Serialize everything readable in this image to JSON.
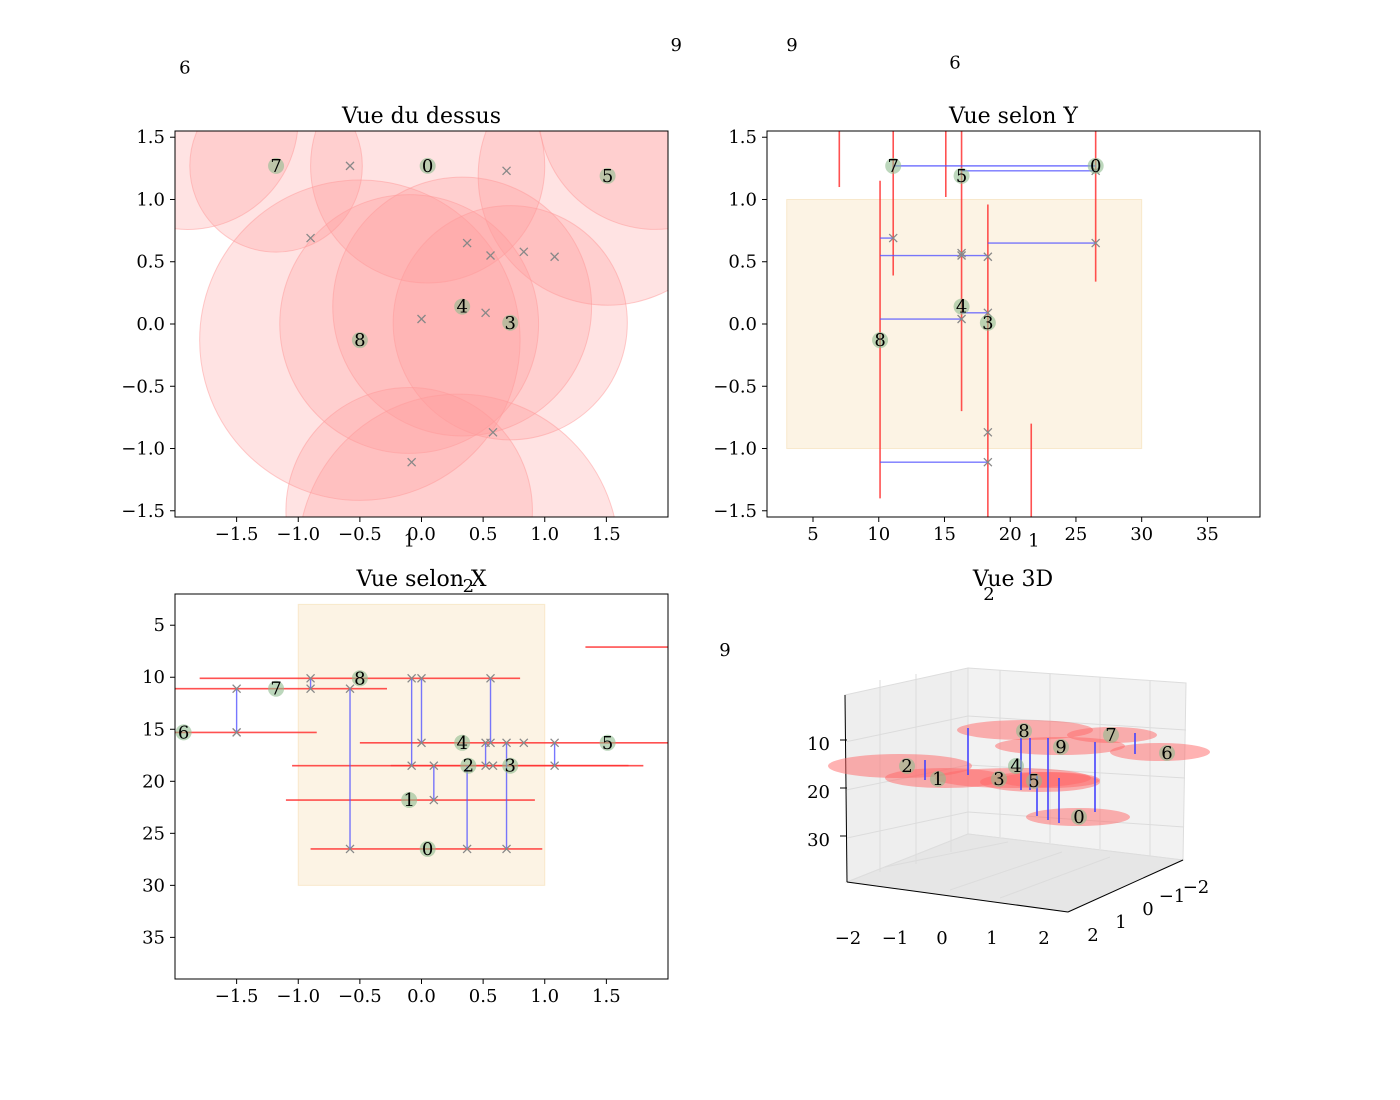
{
  "colors": {
    "circle": "#ff9999",
    "point": "#8fbc8f",
    "cross": "#888888",
    "vline": "#ff3333",
    "hline": "#5555ff",
    "region": "#f5deb3"
  },
  "chart_data": [
    {
      "type": "scatter",
      "title": "Vue du dessus",
      "xlim": [
        -2,
        2
      ],
      "ylim": [
        -1.55,
        1.55
      ],
      "xticks": [
        "−1.5",
        "−1.0",
        "−0.5",
        "0.0",
        "0.5",
        "1.0",
        "1.5"
      ],
      "xtickvals": [
        -1.5,
        -1.0,
        -0.5,
        0.0,
        0.5,
        1.0,
        1.5
      ],
      "yticks": [
        "1.5",
        "1.0",
        "0.5",
        "0.0",
        "−0.5",
        "−1.0",
        "−1.5"
      ],
      "ytickvals": [
        1.5,
        1.0,
        0.5,
        0.0,
        -0.5,
        -1.0,
        -1.5
      ],
      "labeled_points": [
        {
          "id": "0",
          "x": 0.05,
          "y": 1.27
        },
        {
          "id": "3",
          "x": 0.72,
          "y": 0.01
        },
        {
          "id": "4",
          "x": 0.33,
          "y": 0.14
        },
        {
          "id": "5",
          "x": 1.51,
          "y": 1.19
        },
        {
          "id": "7",
          "x": -1.18,
          "y": 1.27
        },
        {
          "id": "8",
          "x": -0.5,
          "y": -0.13
        }
      ],
      "crosses": [
        {
          "x": -0.58,
          "y": 1.27
        },
        {
          "x": 0.69,
          "y": 1.23
        },
        {
          "x": -0.9,
          "y": 0.69
        },
        {
          "x": 0.37,
          "y": 0.65
        },
        {
          "x": 0.56,
          "y": 0.55
        },
        {
          "x": 0.83,
          "y": 0.58
        },
        {
          "x": 1.08,
          "y": 0.54
        },
        {
          "x": 0.0,
          "y": 0.04
        },
        {
          "x": 0.52,
          "y": 0.09
        },
        {
          "x": 0.58,
          "y": -0.87
        },
        {
          "x": -0.08,
          "y": -1.11
        }
      ],
      "circles": [
        {
          "x": -1.18,
          "y": 1.27,
          "r": 0.7
        },
        {
          "x": 0.05,
          "y": 1.27,
          "r": 0.95
        },
        {
          "x": 1.51,
          "y": 1.19,
          "r": 1.05
        },
        {
          "x": -1.9,
          "y": 1.65,
          "r": 0.9
        },
        {
          "x": 1.9,
          "y": 1.7,
          "r": 0.95
        },
        {
          "x": -0.5,
          "y": -0.13,
          "r": 1.3
        },
        {
          "x": 0.33,
          "y": 0.14,
          "r": 1.05
        },
        {
          "x": 0.72,
          "y": 0.01,
          "r": 0.95
        },
        {
          "x": -0.1,
          "y": 0.0,
          "r": 1.05
        },
        {
          "x": -0.1,
          "y": -1.5,
          "r": 1.0
        },
        {
          "x": 0.3,
          "y": -1.85,
          "r": 1.3
        }
      ],
      "offscreen_labels": [
        {
          "text": "6",
          "x": -1.92,
          "y": 2.06
        },
        {
          "text": "1",
          "x": -0.1,
          "y": -1.74
        }
      ]
    },
    {
      "type": "scatter",
      "title": "Vue selon Y",
      "xlim": [
        1.5,
        39
      ],
      "ylim": [
        -1.55,
        1.55
      ],
      "xticks": [
        "5",
        "10",
        "15",
        "20",
        "25",
        "30",
        "35"
      ],
      "xtickvals": [
        5,
        10,
        15,
        20,
        25,
        30,
        35
      ],
      "yticks": [
        "1.5",
        "1.0",
        "0.5",
        "0.0",
        "−0.5",
        "−1.0",
        "−1.5"
      ],
      "ytickvals": [
        1.5,
        1.0,
        0.5,
        0.0,
        -0.5,
        -1.0,
        -1.5
      ],
      "region": {
        "x": [
          3,
          30
        ],
        "y": [
          -1,
          1
        ]
      },
      "labeled_points": [
        {
          "id": "7",
          "x": 11.1,
          "y": 1.27
        },
        {
          "id": "0",
          "x": 26.5,
          "y": 1.27
        },
        {
          "id": "5",
          "x": 16.3,
          "y": 1.19
        },
        {
          "id": "4",
          "x": 16.3,
          "y": 0.14
        },
        {
          "id": "3",
          "x": 18.3,
          "y": 0.01
        },
        {
          "id": "8",
          "x": 10.1,
          "y": -0.13
        }
      ],
      "crosses": [
        {
          "x": 26.5,
          "y": 1.23
        },
        {
          "x": 11.1,
          "y": 0.69
        },
        {
          "x": 26.5,
          "y": 0.65
        },
        {
          "x": 16.3,
          "y": 0.57
        },
        {
          "x": 16.3,
          "y": 0.55
        },
        {
          "x": 18.3,
          "y": 0.54
        },
        {
          "x": 16.3,
          "y": 0.04
        },
        {
          "x": 18.3,
          "y": 0.09
        },
        {
          "x": 18.3,
          "y": -0.87
        },
        {
          "x": 18.3,
          "y": -1.11
        }
      ],
      "vlines": [
        {
          "x": 7.0,
          "y1": 1.1,
          "y2": 1.6
        },
        {
          "x": 11.1,
          "y1": 0.39,
          "y2": 1.6
        },
        {
          "x": 10.1,
          "y1": -1.4,
          "y2": 1.15
        },
        {
          "x": 15.1,
          "y1": 1.02,
          "y2": 1.6
        },
        {
          "x": 16.3,
          "y1": -0.7,
          "y2": 1.6
        },
        {
          "x": 18.3,
          "y1": -1.6,
          "y2": 0.96
        },
        {
          "x": 26.5,
          "y1": 0.34,
          "y2": 1.6
        },
        {
          "x": 21.6,
          "y1": -1.6,
          "y2": -0.8
        }
      ],
      "hlines": [
        {
          "y": 1.27,
          "x1": 11.1,
          "x2": 26.5
        },
        {
          "y": 1.23,
          "x1": 16.3,
          "x2": 26.5
        },
        {
          "y": 0.69,
          "x1": 10.1,
          "x2": 11.1
        },
        {
          "y": 0.65,
          "x1": 18.3,
          "x2": 26.5
        },
        {
          "y": 0.55,
          "x1": 10.1,
          "x2": 18.3
        },
        {
          "y": 0.04,
          "x1": 10.1,
          "x2": 16.3
        },
        {
          "y": 0.09,
          "x1": 16.3,
          "x2": 18.3
        },
        {
          "y": -1.11,
          "x1": 10.1,
          "x2": 18.3
        }
      ],
      "offscreen_labels": [
        {
          "text": "9",
          "x": -5.4,
          "y": 2.24
        },
        {
          "text": "9",
          "x": 3.4,
          "y": 2.24
        },
        {
          "text": "6",
          "x": 15.8,
          "y": 2.1
        },
        {
          "text": "1",
          "x": 21.8,
          "y": -1.74
        }
      ]
    },
    {
      "type": "scatter",
      "title": "Vue selon X",
      "xlim": [
        -2,
        2
      ],
      "ylim": [
        39,
        2
      ],
      "xticks": [
        "−1.5",
        "−1.0",
        "−0.5",
        "0.0",
        "0.5",
        "1.0",
        "1.5"
      ],
      "xtickvals": [
        -1.5,
        -1.0,
        -0.5,
        0.0,
        0.5,
        1.0,
        1.5
      ],
      "yticks": [
        "5",
        "10",
        "15",
        "20",
        "25",
        "30",
        "35"
      ],
      "ytickvals": [
        5,
        10,
        15,
        20,
        25,
        30,
        35
      ],
      "region": {
        "x": [
          -1,
          1
        ],
        "y": [
          3,
          30
        ]
      },
      "labeled_points": [
        {
          "id": "8",
          "x": -0.5,
          "y": 10.1
        },
        {
          "id": "7",
          "x": -1.18,
          "y": 11.1
        },
        {
          "id": "6",
          "x": -1.93,
          "y": 15.3
        },
        {
          "id": "4",
          "x": 0.33,
          "y": 16.3
        },
        {
          "id": "5",
          "x": 1.51,
          "y": 16.3
        },
        {
          "id": "2",
          "x": 0.38,
          "y": 18.5
        },
        {
          "id": "3",
          "x": 0.72,
          "y": 18.5
        },
        {
          "id": "1",
          "x": -0.1,
          "y": 21.8
        },
        {
          "id": "0",
          "x": 0.05,
          "y": 26.5
        }
      ],
      "crosses": [
        {
          "x": -0.9,
          "y": 10.1
        },
        {
          "x": -0.9,
          "y": 11.1
        },
        {
          "x": -1.5,
          "y": 11.1
        },
        {
          "x": -1.5,
          "y": 15.3
        },
        {
          "x": -0.58,
          "y": 11.1
        },
        {
          "x": -0.08,
          "y": 10.1
        },
        {
          "x": 0.0,
          "y": 10.1
        },
        {
          "x": 0.56,
          "y": 10.1
        },
        {
          "x": 0.0,
          "y": 16.3
        },
        {
          "x": 0.52,
          "y": 16.3
        },
        {
          "x": 0.56,
          "y": 16.3
        },
        {
          "x": 0.69,
          "y": 16.3
        },
        {
          "x": 0.83,
          "y": 16.3
        },
        {
          "x": 1.08,
          "y": 16.3
        },
        {
          "x": -0.08,
          "y": 18.5
        },
        {
          "x": 0.1,
          "y": 18.5
        },
        {
          "x": 0.52,
          "y": 18.5
        },
        {
          "x": 0.58,
          "y": 18.5
        },
        {
          "x": 1.08,
          "y": 18.5
        },
        {
          "x": 0.1,
          "y": 21.8
        },
        {
          "x": -0.58,
          "y": 26.5
        },
        {
          "x": 0.37,
          "y": 26.5
        },
        {
          "x": 0.69,
          "y": 26.5
        }
      ],
      "hlines": [
        {
          "y": 10.1,
          "x1": -1.8,
          "x2": 0.8
        },
        {
          "y": 11.1,
          "x1": -2.0,
          "x2": -0.28
        },
        {
          "y": 15.3,
          "x1": -2.0,
          "x2": -0.85
        },
        {
          "y": 16.3,
          "x1": -0.5,
          "x2": 2.0
        },
        {
          "y": 18.5,
          "x1": -1.05,
          "x2": 1.68
        },
        {
          "y": 18.5,
          "x1": -0.25,
          "x2": 1.8
        },
        {
          "y": 21.8,
          "x1": -1.1,
          "x2": 0.92
        },
        {
          "y": 26.5,
          "x1": -0.9,
          "x2": 0.98
        },
        {
          "y": 7.1,
          "x1": 1.33,
          "x2": 2.0
        }
      ],
      "vlines": [
        {
          "x": -1.5,
          "y1": 11.1,
          "y2": 15.3
        },
        {
          "x": -0.9,
          "y1": 10.1,
          "y2": 11.1
        },
        {
          "x": -0.58,
          "y1": 11.1,
          "y2": 26.5
        },
        {
          "x": -0.08,
          "y1": 10.1,
          "y2": 18.5
        },
        {
          "x": 0.0,
          "y1": 10.1,
          "y2": 16.3
        },
        {
          "x": 0.1,
          "y1": 18.5,
          "y2": 21.8
        },
        {
          "x": 0.37,
          "y1": 18.5,
          "y2": 26.5
        },
        {
          "x": 0.52,
          "y1": 16.3,
          "y2": 18.5
        },
        {
          "x": 0.56,
          "y1": 10.1,
          "y2": 16.3
        },
        {
          "x": 0.69,
          "y1": 16.3,
          "y2": 26.5
        },
        {
          "x": 1.08,
          "y1": 16.3,
          "y2": 18.5
        }
      ],
      "offscreen_labels": [
        {
          "text": "2",
          "x": 0.38,
          "y": 1.6
        }
      ]
    },
    {
      "type": "scatter",
      "title": "Vue 3D",
      "zticks": [
        "10",
        "20",
        "30"
      ],
      "xticks": [
        "−2",
        "−1",
        "0",
        "1",
        "2"
      ],
      "yticks": [
        "2",
        "1",
        "0",
        "−1",
        "−2"
      ],
      "labeled_points": [
        "2",
        "1",
        "3",
        "4",
        "5",
        "0",
        "8",
        "9",
        "7",
        "6"
      ],
      "offscreen_labels": [
        "2",
        "9"
      ]
    }
  ]
}
